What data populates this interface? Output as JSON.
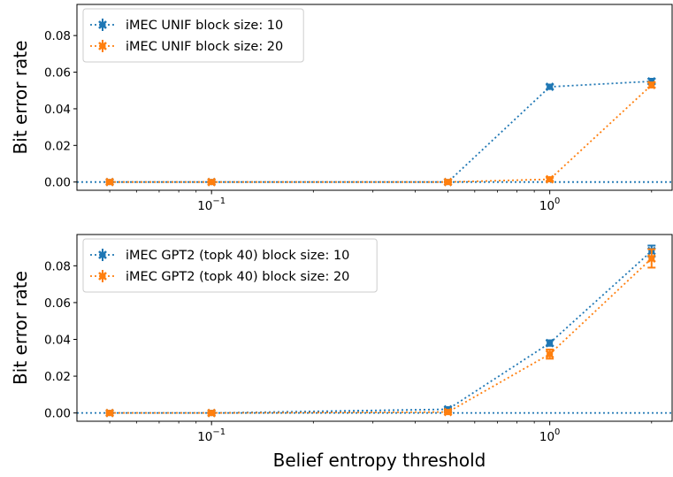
{
  "chart_data": [
    {
      "type": "line",
      "title": "",
      "xlabel": "",
      "ylabel": "Bit error rate",
      "xscale": "log",
      "xlim": [
        0.04,
        2.3
      ],
      "ylim": [
        -0.0045,
        0.097
      ],
      "x_ticks": [
        {
          "value": 0.1,
          "base": "10",
          "exp": "−1"
        },
        {
          "value": 1,
          "base": "10",
          "exp": "0"
        }
      ],
      "y_ticks": [
        {
          "value": 0,
          "label": "0.00"
        },
        {
          "value": 0.02,
          "label": "0.02"
        },
        {
          "value": 0.04,
          "label": "0.04"
        },
        {
          "value": 0.06,
          "label": "0.06"
        },
        {
          "value": 0.08,
          "label": "0.08"
        }
      ],
      "legend_position": "top-left",
      "reference_line": {
        "y": 0,
        "color": "#1f77b4",
        "style": "dotted"
      },
      "series": [
        {
          "name": "iMEC UNIF block size: 10",
          "color": "#1f77b4",
          "x": [
            0.05,
            0.1,
            0.5,
            1,
            2
          ],
          "y": [
            0.0,
            0.0,
            0.0,
            0.052,
            0.055
          ],
          "err": [
            0.0004,
            0.0004,
            0.0004,
            0.0012,
            0.0014
          ]
        },
        {
          "name": "iMEC UNIF block size: 20",
          "color": "#ff7f0e",
          "x": [
            0.05,
            0.1,
            0.5,
            1,
            2
          ],
          "y": [
            0.0,
            0.0,
            0.0,
            0.0015,
            0.053
          ],
          "err": [
            0.0004,
            0.0004,
            0.0004,
            0.0008,
            0.0014
          ]
        }
      ]
    },
    {
      "type": "line",
      "title": "",
      "xlabel": "Belief entropy threshold",
      "ylabel": "Bit error rate",
      "xscale": "log",
      "xlim": [
        0.04,
        2.3
      ],
      "ylim": [
        -0.0045,
        0.097
      ],
      "x_ticks": [
        {
          "value": 0.1,
          "base": "10",
          "exp": "−1"
        },
        {
          "value": 1,
          "base": "10",
          "exp": "0"
        }
      ],
      "y_ticks": [
        {
          "value": 0,
          "label": "0.00"
        },
        {
          "value": 0.02,
          "label": "0.02"
        },
        {
          "value": 0.04,
          "label": "0.04"
        },
        {
          "value": 0.06,
          "label": "0.06"
        },
        {
          "value": 0.08,
          "label": "0.08"
        }
      ],
      "legend_position": "top-left",
      "reference_line": {
        "y": 0,
        "color": "#1f77b4",
        "style": "dotted"
      },
      "series": [
        {
          "name": "iMEC GPT2 (topk 40) block size: 10",
          "color": "#1f77b4",
          "x": [
            0.05,
            0.1,
            0.5,
            1,
            2
          ],
          "y": [
            0.0,
            0.0,
            0.002,
            0.038,
            0.088
          ],
          "err": [
            0.0004,
            0.0004,
            0.0006,
            0.0015,
            0.003
          ]
        },
        {
          "name": "iMEC GPT2 (topk 40) block size: 20",
          "color": "#ff7f0e",
          "x": [
            0.05,
            0.1,
            0.5,
            1,
            2
          ],
          "y": [
            0.0,
            0.0,
            0.0005,
            0.032,
            0.084
          ],
          "err": [
            0.0004,
            0.0004,
            0.0005,
            0.0025,
            0.005
          ]
        }
      ]
    }
  ]
}
